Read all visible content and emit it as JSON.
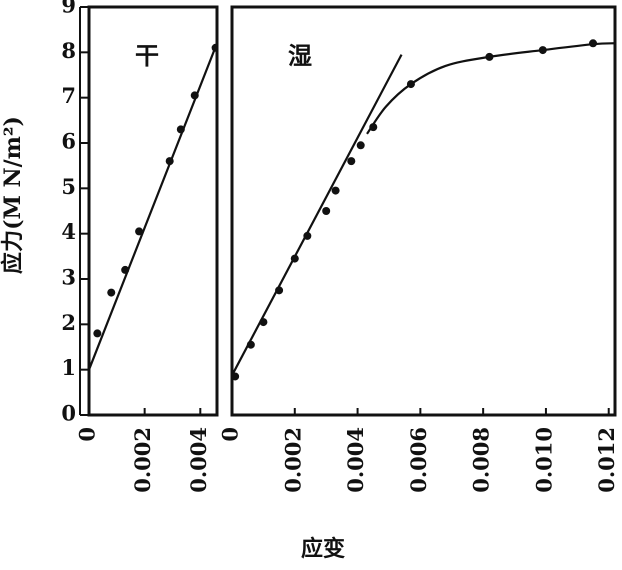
{
  "chart_data": [
    {
      "type": "scatter",
      "title": "干",
      "xlabel": "应变",
      "ylabel": "应力(M N/m²)",
      "xlim": [
        0,
        0.0046
      ],
      "ylim": [
        0,
        9
      ],
      "x_ticks": [
        "0",
        "0.002",
        "0.004"
      ],
      "y_ticks": [
        "0",
        "1",
        "2",
        "3",
        "4",
        "5",
        "6",
        "7",
        "8",
        "9"
      ],
      "series": [
        {
          "points": [
            {
              "x": 0.0003,
              "y": 1.8
            },
            {
              "x": 0.0008,
              "y": 2.7
            },
            {
              "x": 0.0013,
              "y": 3.2
            },
            {
              "x": 0.0018,
              "y": 4.05
            },
            {
              "x": 0.0029,
              "y": 5.6
            },
            {
              "x": 0.0033,
              "y": 6.3
            },
            {
              "x": 0.0038,
              "y": 7.05
            },
            {
              "x": 0.00455,
              "y": 8.1
            }
          ]
        }
      ],
      "fit_line": [
        {
          "x": 0,
          "y": 1.0
        },
        {
          "x": 0.0046,
          "y": 8.2
        }
      ]
    },
    {
      "type": "scatter",
      "title": "湿",
      "xlabel": "应变",
      "xlim": [
        0,
        0.0122
      ],
      "ylim": [
        0,
        9
      ],
      "x_ticks": [
        "0",
        "0.002",
        "0.004",
        "0.006",
        "0.008",
        "0.010",
        "0.012"
      ],
      "series": [
        {
          "points": [
            {
              "x": 0.0001,
              "y": 0.85
            },
            {
              "x": 0.0006,
              "y": 1.55
            },
            {
              "x": 0.001,
              "y": 2.05
            },
            {
              "x": 0.0015,
              "y": 2.75
            },
            {
              "x": 0.002,
              "y": 3.45
            },
            {
              "x": 0.0024,
              "y": 3.95
            },
            {
              "x": 0.003,
              "y": 4.5
            },
            {
              "x": 0.0033,
              "y": 4.95
            },
            {
              "x": 0.0038,
              "y": 5.6
            },
            {
              "x": 0.0041,
              "y": 5.95
            },
            {
              "x": 0.0045,
              "y": 6.35
            },
            {
              "x": 0.0057,
              "y": 7.3
            },
            {
              "x": 0.0082,
              "y": 7.9
            },
            {
              "x": 0.0099,
              "y": 8.05
            },
            {
              "x": 0.0115,
              "y": 8.2
            }
          ]
        }
      ],
      "fit_line": [
        {
          "x": -0.0004,
          "y": 0.35
        },
        {
          "x": 0.0054,
          "y": 7.95
        }
      ],
      "curve": [
        {
          "x": 0.0043,
          "y": 6.2
        },
        {
          "x": 0.0049,
          "y": 6.8
        },
        {
          "x": 0.0057,
          "y": 7.3
        },
        {
          "x": 0.0068,
          "y": 7.7
        },
        {
          "x": 0.0082,
          "y": 7.9
        },
        {
          "x": 0.0099,
          "y": 8.05
        },
        {
          "x": 0.0115,
          "y": 8.18
        },
        {
          "x": 0.0122,
          "y": 8.2
        }
      ]
    }
  ]
}
